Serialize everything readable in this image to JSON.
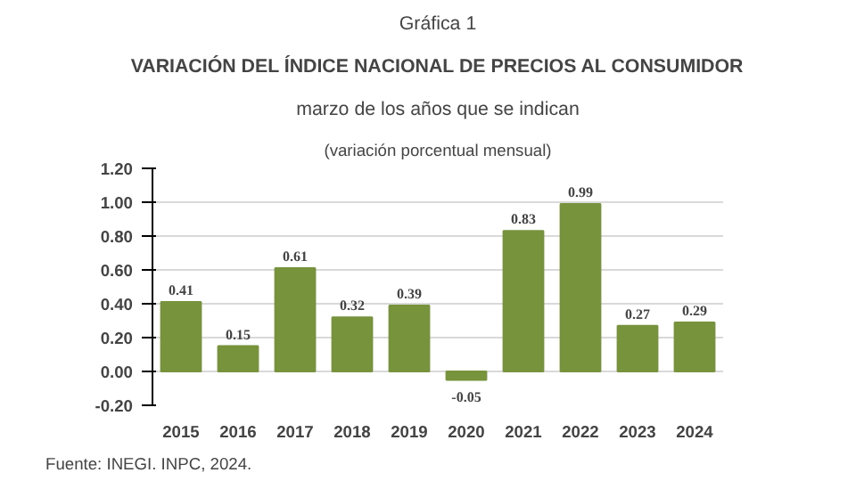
{
  "chart_data": {
    "type": "bar",
    "title": "VARIACIÓN DEL ÍNDICE NACIONAL DE PRECIOS AL CONSUMIDOR",
    "subtitle": "marzo de los años que se indican",
    "annotations": [
      "Gráfica 1",
      "(variación porcentual mensual)",
      "Fuente: INEGI. INPC, 2024."
    ],
    "categories": [
      "2015",
      "2016",
      "2017",
      "2018",
      "2019",
      "2020",
      "2021",
      "2022",
      "2023",
      "2024"
    ],
    "values": [
      0.41,
      0.15,
      0.61,
      0.32,
      0.39,
      -0.05,
      0.83,
      0.99,
      0.27,
      0.29
    ],
    "color": "#77933c",
    "ylim": [
      -0.2,
      1.2
    ],
    "yticks": [
      {
        "value": -0.2,
        "label": "-0.20"
      },
      {
        "value": 0,
        "label": "0.00"
      },
      {
        "value": 0.2,
        "label": "0.20"
      },
      {
        "value": 0.4,
        "label": "0.40"
      },
      {
        "value": 0.6,
        "label": "0.60"
      },
      {
        "value": 0.8,
        "label": "0.80"
      },
      {
        "value": 1.0,
        "label": "1.00"
      },
      {
        "value": 1.2,
        "label": "1.20"
      }
    ],
    "grid": "y",
    "data_labels": true
  }
}
